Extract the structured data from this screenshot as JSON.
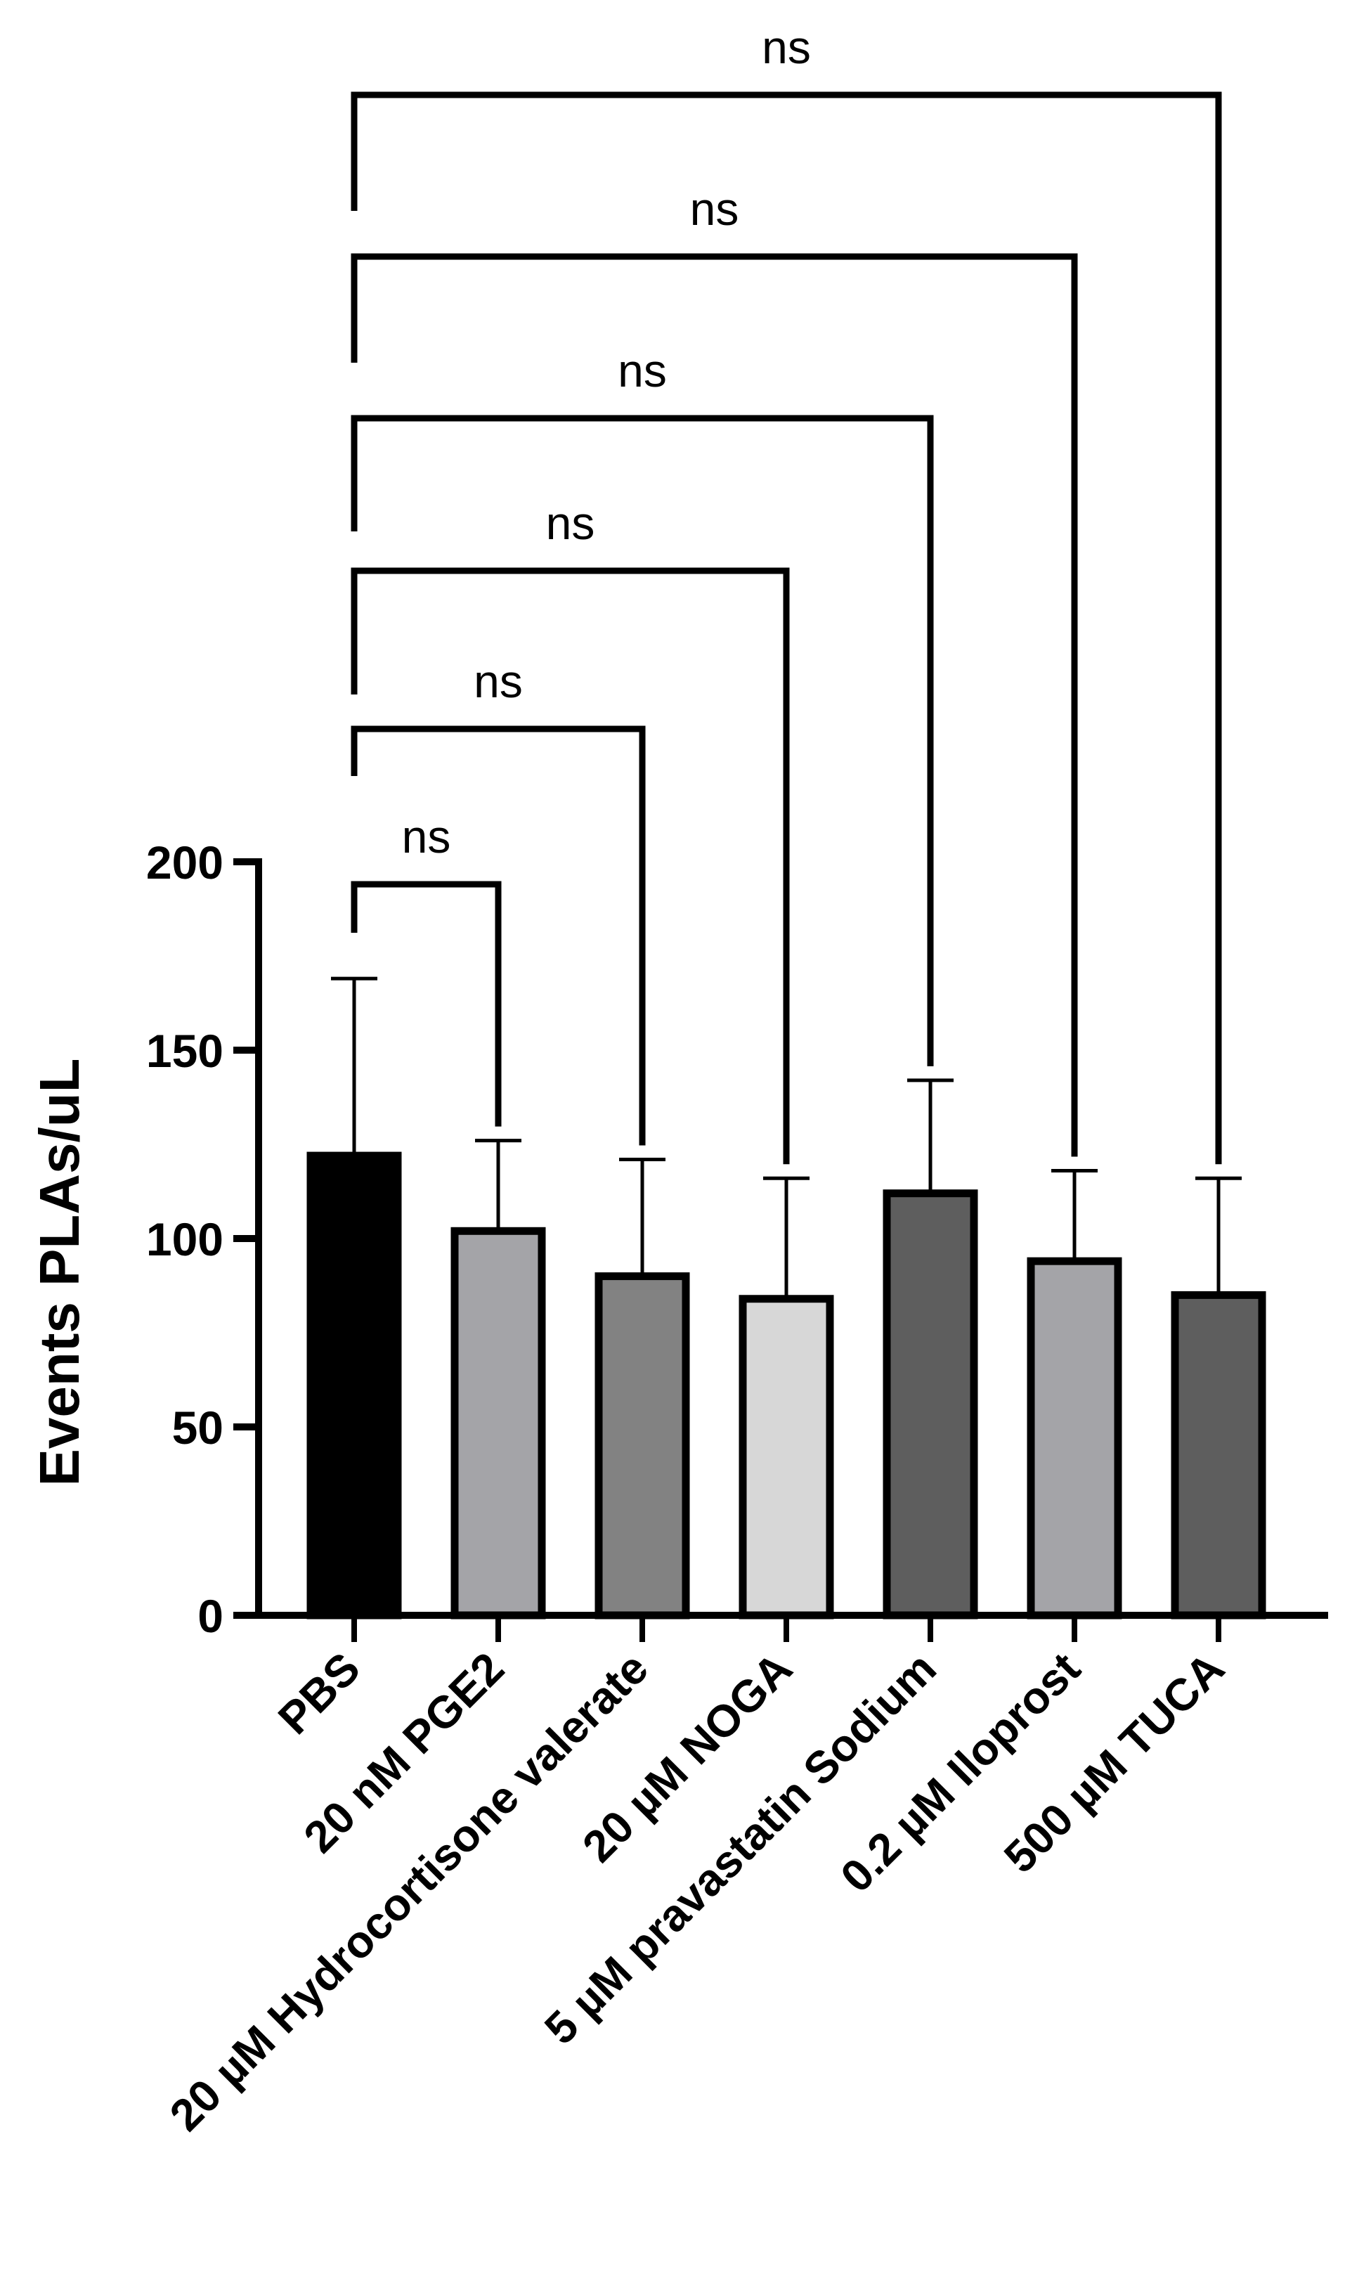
{
  "chart_data": {
    "type": "bar",
    "title": "",
    "xlabel": "",
    "ylabel": "Events PLAs/uL",
    "ylim": [
      0,
      200
    ],
    "yticks": [
      0,
      50,
      100,
      150,
      200
    ],
    "categories": [
      "PBS",
      "20 nM PGE2",
      "20 µM Hydrocortisone valerate",
      "20 µM NOGA",
      "5 µM pravastatin Sodium",
      "0.2 µM Iloprost",
      "500 µM TUCA"
    ],
    "values": [
      122,
      102,
      90,
      84,
      112,
      94,
      85
    ],
    "error_upper": [
      47,
      24,
      31,
      32,
      30,
      24,
      31
    ],
    "bar_colors": [
      "#000000",
      "#a4a4a8",
      "#828282",
      "#d7d7d7",
      "#5e5e5e",
      "#a4a4a8",
      "#5e5e5e"
    ],
    "comparisons": [
      {
        "from": "PBS",
        "to": "20 nM PGE2",
        "label": "ns"
      },
      {
        "from": "PBS",
        "to": "20 µM Hydrocortisone valerate",
        "label": "ns"
      },
      {
        "from": "PBS",
        "to": "20 µM NOGA",
        "label": "ns"
      },
      {
        "from": "PBS",
        "to": "5 µM pravastatin Sodium",
        "label": "ns"
      },
      {
        "from": "PBS",
        "to": "0.2 µM Iloprost",
        "label": "ns"
      },
      {
        "from": "PBS",
        "to": "500 µM TUCA",
        "label": "ns"
      }
    ]
  }
}
